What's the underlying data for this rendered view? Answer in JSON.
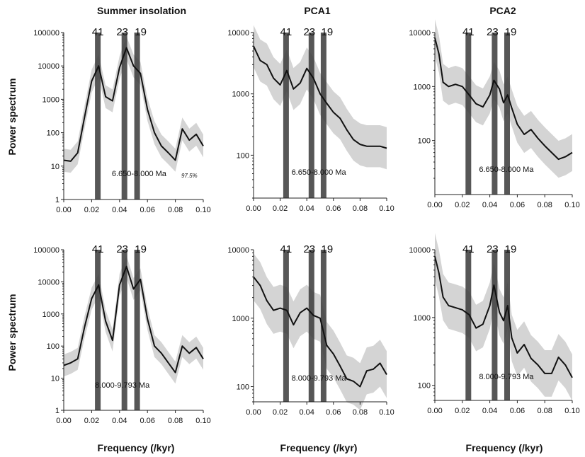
{
  "figure": {
    "column_titles": [
      "Summer insolation",
      "PCA1",
      "PCA2"
    ],
    "ylabel": "Power spectrum",
    "xlabel": "Frequency (/kyr)"
  },
  "colors": {
    "band": "#cccccc",
    "curve": "#111111",
    "bar": "#3a3a3a",
    "axis": "#222222"
  },
  "chart_data": [
    {
      "id": "summer-insolation-top",
      "type": "line",
      "title": "Summer insolation",
      "xlabel": "",
      "ylabel": "Power spectrum",
      "ylog": true,
      "xlim": [
        0,
        0.1
      ],
      "ylim": [
        1,
        100000
      ],
      "xticks": [
        "0.00",
        "0.02",
        "0.04",
        "0.06",
        "0.08",
        "0.10"
      ],
      "yticks": [
        "1",
        "10",
        "100",
        "1000",
        "10000",
        "100000"
      ],
      "cycles": [
        "41",
        "23",
        "19"
      ],
      "cycle_freqs": [
        0.0244,
        0.0435,
        0.0526
      ],
      "annotation": "6.650-8.000 Ma",
      "confidence_label": "97.5%",
      "series": [
        {
          "x": [
            0,
            0.005,
            0.01,
            0.015,
            0.02,
            0.025,
            0.03,
            0.035,
            0.04,
            0.045,
            0.05,
            0.055,
            0.06,
            0.065,
            0.07,
            0.075,
            0.08,
            0.085,
            0.09,
            0.095,
            0.1
          ],
          "y": [
            15,
            14,
            25,
            300,
            3500,
            10000,
            1200,
            900,
            9000,
            35000,
            10000,
            6000,
            500,
            100,
            40,
            25,
            15,
            130,
            60,
            90,
            40
          ]
        }
      ]
    },
    {
      "id": "pca1-top",
      "type": "line",
      "title": "PCA1",
      "xlabel": "",
      "ylabel": "",
      "ylog": true,
      "xlim": [
        0,
        0.1
      ],
      "ylim": [
        20,
        10000
      ],
      "xticks": [
        "0.00",
        "0.02",
        "0.04",
        "0.06",
        "0.08",
        "0.10"
      ],
      "yticks": [
        "100",
        "1000",
        "10000"
      ],
      "cycles": [
        "41",
        "23",
        "19"
      ],
      "cycle_freqs": [
        0.0244,
        0.0435,
        0.0526
      ],
      "annotation": "6.650-8.000 Ma",
      "series": [
        {
          "x": [
            0,
            0.005,
            0.01,
            0.015,
            0.02,
            0.025,
            0.03,
            0.035,
            0.04,
            0.045,
            0.05,
            0.055,
            0.06,
            0.065,
            0.07,
            0.075,
            0.08,
            0.085,
            0.09,
            0.095,
            0.1
          ],
          "y": [
            6000,
            3500,
            3000,
            1800,
            1400,
            2400,
            1200,
            1500,
            2600,
            1800,
            1000,
            700,
            500,
            400,
            260,
            180,
            150,
            140,
            140,
            140,
            130
          ]
        }
      ]
    },
    {
      "id": "pca2-top",
      "type": "line",
      "title": "PCA2",
      "xlabel": "",
      "ylabel": "",
      "ylog": true,
      "xlim": [
        0,
        0.1
      ],
      "ylim": [
        10,
        10000
      ],
      "xticks": [
        "0.00",
        "0.02",
        "0.04",
        "0.06",
        "0.08",
        "0.10"
      ],
      "yticks": [
        "100",
        "1000",
        "10000"
      ],
      "cycles": [
        "41",
        "23",
        "19"
      ],
      "cycle_freqs": [
        0.0244,
        0.0435,
        0.0526
      ],
      "annotation": "6.650-8.000 Ma",
      "series": [
        {
          "x": [
            0,
            0.003,
            0.006,
            0.01,
            0.015,
            0.02,
            0.025,
            0.03,
            0.035,
            0.04,
            0.043,
            0.047,
            0.05,
            0.053,
            0.056,
            0.06,
            0.065,
            0.07,
            0.075,
            0.08,
            0.085,
            0.09,
            0.095,
            0.1
          ],
          "y": [
            8000,
            4000,
            1200,
            1000,
            1100,
            1000,
            700,
            480,
            420,
            700,
            1300,
            900,
            500,
            700,
            400,
            200,
            130,
            160,
            110,
            80,
            60,
            45,
            50,
            60
          ]
        }
      ]
    },
    {
      "id": "summer-insolation-bottom",
      "type": "line",
      "title": "",
      "xlabel": "Frequency (/kyr)",
      "ylabel": "Power spectrum",
      "ylog": true,
      "xlim": [
        0,
        0.1
      ],
      "ylim": [
        1,
        100000
      ],
      "xticks": [
        "0.00",
        "0.02",
        "0.04",
        "0.06",
        "0.08",
        "0.10"
      ],
      "yticks": [
        "1",
        "10",
        "100",
        "1000",
        "10000",
        "100000"
      ],
      "cycles": [
        "41",
        "23",
        "19"
      ],
      "cycle_freqs": [
        0.0244,
        0.0435,
        0.0526
      ],
      "annotation": "8.000-9.793 Ma",
      "series": [
        {
          "x": [
            0,
            0.005,
            0.01,
            0.015,
            0.02,
            0.025,
            0.03,
            0.035,
            0.04,
            0.045,
            0.05,
            0.055,
            0.06,
            0.065,
            0.07,
            0.075,
            0.08,
            0.085,
            0.09,
            0.095,
            0.1
          ],
          "y": [
            25,
            30,
            40,
            400,
            3000,
            8000,
            600,
            150,
            8000,
            30000,
            6000,
            12000,
            700,
            100,
            60,
            30,
            15,
            100,
            60,
            90,
            40
          ]
        }
      ]
    },
    {
      "id": "pca1-bottom",
      "type": "line",
      "title": "",
      "xlabel": "Frequency (/kyr)",
      "ylabel": "",
      "ylog": true,
      "xlim": [
        0,
        0.1
      ],
      "ylim": [
        60,
        10000
      ],
      "xticks": [
        "0.00",
        "0.02",
        "0.04",
        "0.06",
        "0.08",
        "0.10"
      ],
      "yticks": [
        "100",
        "1000",
        "10000"
      ],
      "cycles": [
        "41",
        "23",
        "19"
      ],
      "cycle_freqs": [
        0.0244,
        0.0435,
        0.0526
      ],
      "annotation": "8.000-9.793 Ma",
      "series": [
        {
          "x": [
            0,
            0.005,
            0.01,
            0.015,
            0.02,
            0.025,
            0.03,
            0.035,
            0.04,
            0.045,
            0.05,
            0.055,
            0.06,
            0.065,
            0.07,
            0.075,
            0.08,
            0.085,
            0.09,
            0.095,
            0.1
          ],
          "y": [
            4000,
            3000,
            1800,
            1300,
            1400,
            1300,
            800,
            1200,
            1400,
            1100,
            1000,
            400,
            300,
            200,
            130,
            120,
            100,
            170,
            180,
            220,
            150
          ]
        }
      ]
    },
    {
      "id": "pca2-bottom",
      "type": "line",
      "title": "",
      "xlabel": "Frequency (/kyr)",
      "ylabel": "",
      "ylog": true,
      "xlim": [
        0,
        0.1
      ],
      "ylim": [
        60,
        10000
      ],
      "xticks": [
        "0.00",
        "0.02",
        "0.04",
        "0.06",
        "0.08",
        "0.10"
      ],
      "yticks": [
        "100",
        "1000",
        "10000"
      ],
      "cycles": [
        "41",
        "23",
        "19"
      ],
      "cycle_freqs": [
        0.0244,
        0.0435,
        0.0526
      ],
      "annotation": "8.000-9.793 Ma",
      "series": [
        {
          "x": [
            0,
            0.003,
            0.006,
            0.01,
            0.015,
            0.02,
            0.025,
            0.03,
            0.035,
            0.04,
            0.043,
            0.047,
            0.05,
            0.053,
            0.056,
            0.06,
            0.065,
            0.07,
            0.075,
            0.08,
            0.085,
            0.09,
            0.095,
            0.1
          ],
          "y": [
            8000,
            4500,
            2000,
            1500,
            1400,
            1300,
            1100,
            700,
            800,
            1500,
            3000,
            1200,
            900,
            1500,
            500,
            300,
            400,
            250,
            200,
            150,
            150,
            260,
            200,
            130
          ]
        }
      ]
    }
  ]
}
